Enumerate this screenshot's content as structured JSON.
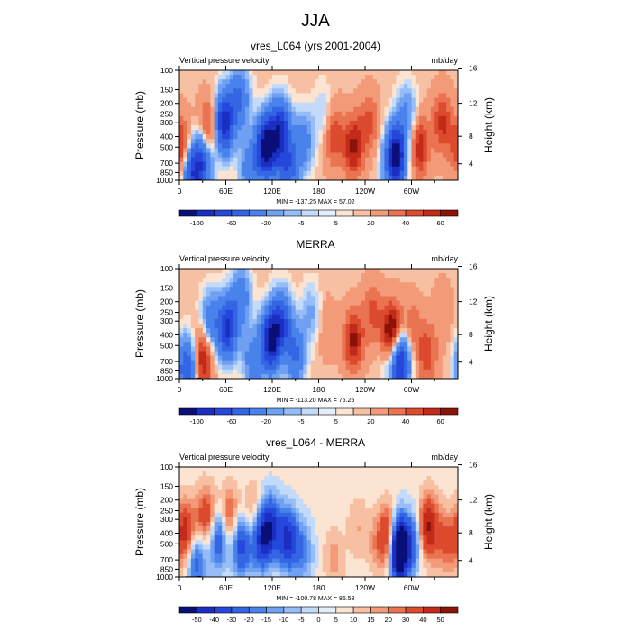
{
  "figure_title": "JJA",
  "chart_data": [
    {
      "type": "heatmap",
      "title": "vres_L064 (yrs 2001-2004)",
      "left_label": "Vertical pressure velocity",
      "right_label": "mb/day",
      "ylabel": "Pressure (mb)",
      "y2label": "Height (km)",
      "xticks": [
        "0",
        "60E",
        "120E",
        "180",
        "120W",
        "60W"
      ],
      "yticks": [
        "100",
        "150",
        "200",
        "250",
        "300",
        "400",
        "500",
        "700",
        "850",
        "1000"
      ],
      "y2ticks": [
        "4",
        "8",
        "12",
        "16"
      ],
      "stats": "MIN = -137.25   MAX =  57.02",
      "colorbar_labels": [
        "-100",
        "-60",
        "-20",
        "-5",
        "5",
        "20",
        "40",
        "60"
      ],
      "features": [
        {
          "lon": 5,
          "p": 550,
          "value": 50
        },
        {
          "lon": 15,
          "p": 820,
          "value": -80
        },
        {
          "lon": 30,
          "p": 700,
          "value": -70
        },
        {
          "lon": 38,
          "p": 350,
          "value": 40
        },
        {
          "lon": 58,
          "p": 300,
          "value": -100
        },
        {
          "lon": 78,
          "p": 180,
          "value": -50
        },
        {
          "lon": 90,
          "p": 800,
          "value": -40
        },
        {
          "lon": 112,
          "p": 500,
          "value": -130
        },
        {
          "lon": 130,
          "p": 350,
          "value": -90
        },
        {
          "lon": 140,
          "p": 800,
          "value": -60
        },
        {
          "lon": 160,
          "p": 450,
          "value": -40
        },
        {
          "lon": 185,
          "p": 250,
          "value": -15
        },
        {
          "lon": 200,
          "p": 400,
          "value": 30
        },
        {
          "lon": 225,
          "p": 500,
          "value": 45
        },
        {
          "lon": 245,
          "p": 300,
          "value": 25
        },
        {
          "lon": 270,
          "p": 900,
          "value": -15
        },
        {
          "lon": 280,
          "p": 600,
          "value": -120
        },
        {
          "lon": 294,
          "p": 250,
          "value": -30
        },
        {
          "lon": 310,
          "p": 500,
          "value": 40
        },
        {
          "lon": 340,
          "p": 300,
          "value": 35
        }
      ]
    },
    {
      "type": "heatmap",
      "title": "MERRA",
      "left_label": "Vertical pressure velocity",
      "right_label": "mb/day",
      "ylabel": "Pressure (mb)",
      "y2label": "Height (km)",
      "xticks": [
        "0",
        "60E",
        "120E",
        "180",
        "120W",
        "60W"
      ],
      "yticks": [
        "100",
        "150",
        "200",
        "250",
        "300",
        "400",
        "500",
        "700",
        "850",
        "1000"
      ],
      "y2ticks": [
        "4",
        "8",
        "12",
        "16"
      ],
      "stats": "MIN = -113.20   MAX =  75.25",
      "colorbar_labels": [
        "-100",
        "-60",
        "-20",
        "-5",
        "5",
        "20",
        "40",
        "60"
      ],
      "features": [
        {
          "lon": 10,
          "p": 800,
          "value": -70
        },
        {
          "lon": 30,
          "p": 650,
          "value": 50
        },
        {
          "lon": 40,
          "p": 300,
          "value": -40
        },
        {
          "lon": 62,
          "p": 350,
          "value": -90
        },
        {
          "lon": 80,
          "p": 180,
          "value": -40
        },
        {
          "lon": 95,
          "p": 700,
          "value": -40
        },
        {
          "lon": 118,
          "p": 450,
          "value": -110
        },
        {
          "lon": 132,
          "p": 300,
          "value": -70
        },
        {
          "lon": 150,
          "p": 600,
          "value": -50
        },
        {
          "lon": 170,
          "p": 250,
          "value": -20
        },
        {
          "lon": 190,
          "p": 350,
          "value": 10
        },
        {
          "lon": 225,
          "p": 450,
          "value": 45
        },
        {
          "lon": 250,
          "p": 250,
          "value": 25
        },
        {
          "lon": 268,
          "p": 700,
          "value": -10
        },
        {
          "lon": 275,
          "p": 400,
          "value": 70
        },
        {
          "lon": 285,
          "p": 700,
          "value": -100
        },
        {
          "lon": 300,
          "p": 350,
          "value": 20
        },
        {
          "lon": 320,
          "p": 600,
          "value": 30
        },
        {
          "lon": 340,
          "p": 250,
          "value": 10
        }
      ]
    },
    {
      "type": "heatmap",
      "title": "vres_L064 - MERRA",
      "left_label": "Vertical pressure velocity",
      "right_label": "mb/day",
      "ylabel": "Pressure (mb)",
      "y2label": "Height (km)",
      "xticks": [
        "0",
        "60E",
        "120E",
        "180",
        "120W",
        "60W"
      ],
      "yticks": [
        "100",
        "150",
        "200",
        "250",
        "300",
        "400",
        "500",
        "700",
        "850",
        "1000"
      ],
      "y2ticks": [
        "4",
        "8",
        "12",
        "16"
      ],
      "stats": "MIN = -100.78   MAX =  85.58",
      "colorbar_labels": [
        "-50",
        "-40",
        "-30",
        "-20",
        "-15",
        "-10",
        "-5",
        "0",
        "5",
        "10",
        "15",
        "20",
        "30",
        "40",
        "50"
      ],
      "features": [
        {
          "lon": 8,
          "p": 400,
          "value": 35
        },
        {
          "lon": 22,
          "p": 700,
          "value": -30
        },
        {
          "lon": 35,
          "p": 300,
          "value": 30
        },
        {
          "lon": 50,
          "p": 450,
          "value": -35
        },
        {
          "lon": 65,
          "p": 300,
          "value": 25
        },
        {
          "lon": 80,
          "p": 500,
          "value": -40
        },
        {
          "lon": 95,
          "p": 300,
          "value": 20
        },
        {
          "lon": 105,
          "p": 450,
          "value": -45
        },
        {
          "lon": 118,
          "p": 350,
          "value": -40
        },
        {
          "lon": 140,
          "p": 450,
          "value": -45
        },
        {
          "lon": 160,
          "p": 600,
          "value": -20
        },
        {
          "lon": 200,
          "p": 700,
          "value": 10
        },
        {
          "lon": 230,
          "p": 350,
          "value": 8
        },
        {
          "lon": 255,
          "p": 500,
          "value": 10
        },
        {
          "lon": 272,
          "p": 450,
          "value": 45
        },
        {
          "lon": 283,
          "p": 550,
          "value": -100
        },
        {
          "lon": 300,
          "p": 500,
          "value": -25
        },
        {
          "lon": 322,
          "p": 350,
          "value": 40
        },
        {
          "lon": 345,
          "p": 500,
          "value": 20
        }
      ]
    }
  ]
}
